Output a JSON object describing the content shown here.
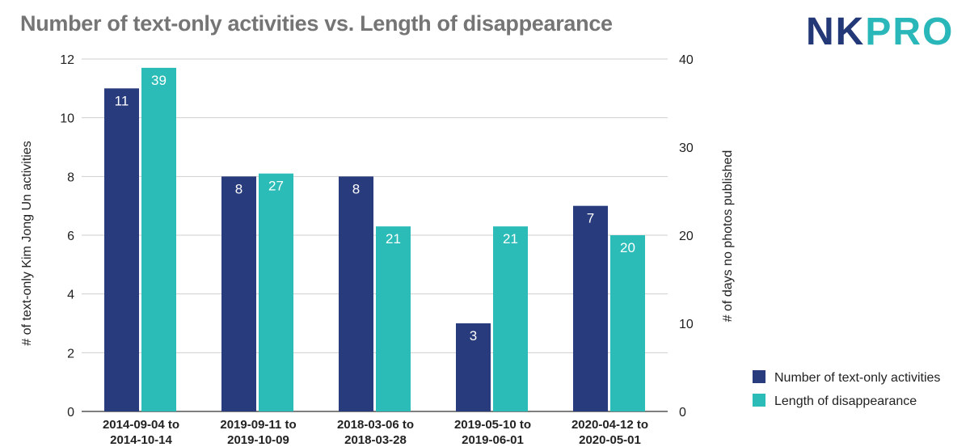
{
  "chart_data": {
    "type": "bar",
    "title": "Number of text-only activities vs. Length of disappearance",
    "categories": [
      [
        "2014-09-04 to",
        "2014-10-14"
      ],
      [
        "2019-09-11 to",
        "2019-10-09"
      ],
      [
        "2018-03-06 to",
        "2018-03-28"
      ],
      [
        "2019-05-10 to",
        "2019-06-01"
      ],
      [
        "2020-04-12 to",
        "2020-05-01"
      ]
    ],
    "series": [
      {
        "name": "Number of text-only activities",
        "values": [
          11,
          8,
          8,
          3,
          7
        ],
        "axis": "left",
        "color": "#283b7c"
      },
      {
        "name": "Length of disappearance",
        "values": [
          39,
          27,
          21,
          21,
          20
        ],
        "axis": "right",
        "color": "#2cbcb8"
      }
    ],
    "ylabel_left": "# of text-only Kim Jong Un activities",
    "ylabel_right": "# of days no photos published",
    "ylim_left": [
      0,
      12
    ],
    "ylim_right": [
      0,
      40
    ],
    "yticks_left": [
      "0",
      "2",
      "4",
      "6",
      "8",
      "10",
      "12"
    ],
    "yticks_right": [
      "0",
      "10",
      "20",
      "30",
      "40"
    ],
    "grid": true,
    "legend_position": "bottom-right",
    "data_labels": true
  },
  "logo": {
    "part1": "NK",
    "part2": "PRO"
  }
}
